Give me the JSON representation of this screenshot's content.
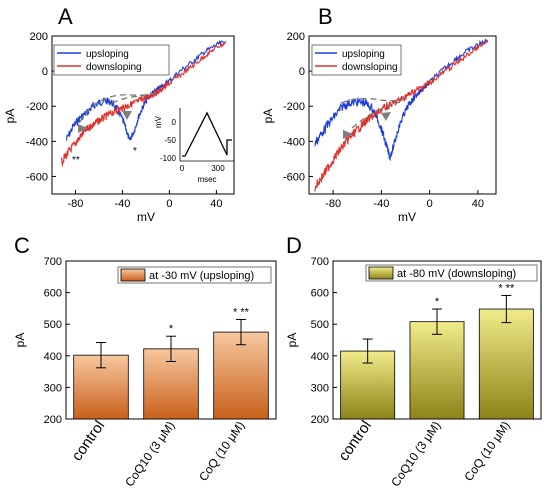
{
  "panels": {
    "A": {
      "letter": "A"
    },
    "B": {
      "letter": "B"
    },
    "C": {
      "letter": "C"
    },
    "D": {
      "letter": "D"
    }
  },
  "colors": {
    "upsloping": "#1f3fd6",
    "downsloping": "#e0302a",
    "bar_c_top": "#f7c8a0",
    "bar_c_bottom": "#c8601a",
    "bar_d_top": "#f1eb8a",
    "bar_d_bottom": "#8c8417",
    "dashed": "#777777",
    "arrow": "#7f7f7f"
  },
  "chart_data": [
    {
      "panel": "A",
      "type": "line",
      "xlabel": "mV",
      "ylabel": "pA",
      "xlim": [
        -100,
        55
      ],
      "ylim": [
        -700,
        200
      ],
      "xticks": [
        -80,
        -40,
        0,
        40
      ],
      "yticks": [
        200,
        0,
        -200,
        -400,
        -600
      ],
      "legend_position": "top-left",
      "series": [
        {
          "name": "upsloping",
          "color": "#1f3fd6",
          "x": [
            -88,
            -82,
            -76,
            -70,
            -65,
            -60,
            -55,
            -50,
            -45,
            -40,
            -37,
            -34,
            -30,
            -26,
            -22,
            -18,
            -14,
            -10,
            -5,
            0,
            10,
            20,
            30,
            40,
            48
          ],
          "y": [
            -395,
            -315,
            -265,
            -235,
            -200,
            -180,
            -170,
            -175,
            -210,
            -275,
            -330,
            -395,
            -340,
            -255,
            -195,
            -150,
            -125,
            -105,
            -80,
            -55,
            5,
            55,
            110,
            150,
            170
          ]
        },
        {
          "name": "downsloping",
          "color": "#e0302a",
          "x": [
            -92,
            -88,
            -84,
            -80,
            -76,
            -72,
            -68,
            -64,
            -60,
            -55,
            -50,
            -45,
            -40,
            -35,
            -30,
            -25,
            -20,
            -15,
            -10,
            -5,
            0,
            10,
            20,
            30,
            40,
            48
          ],
          "y": [
            -520,
            -480,
            -445,
            -410,
            -375,
            -340,
            -320,
            -300,
            -282,
            -262,
            -242,
            -225,
            -210,
            -195,
            -182,
            -165,
            -150,
            -135,
            -120,
            -95,
            -70,
            -20,
            30,
            85,
            135,
            160
          ]
        }
      ],
      "annotations": [
        "**",
        "*"
      ],
      "inset": {
        "xlabel": "msec",
        "ylabel": "mV",
        "xticks": [
          "0",
          "300"
        ],
        "yticks": [
          "0",
          "-50",
          "-100"
        ],
        "protocol_x_ms": [
          0,
          40,
          220,
          400,
          400,
          460
        ],
        "protocol_y_mv": [
          -80,
          -80,
          40,
          -60,
          -50,
          -50
        ]
      }
    },
    {
      "panel": "B",
      "type": "line",
      "xlabel": "mV",
      "ylabel": "pA",
      "xlim": [
        -100,
        55
      ],
      "ylim": [
        -700,
        200
      ],
      "xticks": [
        -80,
        -40,
        0,
        40
      ],
      "yticks": [
        200,
        0,
        -200,
        -400,
        -600
      ],
      "legend_position": "top-left",
      "series": [
        {
          "name": "upsloping",
          "color": "#1f3fd6",
          "x": [
            -95,
            -90,
            -84,
            -78,
            -72,
            -66,
            -60,
            -54,
            -48,
            -44,
            -40,
            -36,
            -33,
            -30,
            -26,
            -22,
            -18,
            -14,
            -10,
            -5,
            0,
            10,
            20,
            30,
            40,
            48
          ],
          "y": [
            -410,
            -360,
            -300,
            -250,
            -200,
            -180,
            -175,
            -180,
            -210,
            -260,
            -330,
            -420,
            -490,
            -430,
            -330,
            -255,
            -200,
            -160,
            -130,
            -95,
            -65,
            0,
            60,
            110,
            150,
            175
          ]
        },
        {
          "name": "downsloping",
          "color": "#e0302a",
          "x": [
            -95,
            -90,
            -85,
            -80,
            -75,
            -70,
            -65,
            -60,
            -55,
            -50,
            -45,
            -40,
            -35,
            -30,
            -25,
            -20,
            -15,
            -10,
            -5,
            0,
            10,
            20,
            30,
            40,
            48
          ],
          "y": [
            -660,
            -610,
            -560,
            -505,
            -455,
            -410,
            -370,
            -335,
            -300,
            -270,
            -245,
            -220,
            -200,
            -185,
            -165,
            -145,
            -125,
            -105,
            -85,
            -65,
            -15,
            35,
            85,
            135,
            165
          ]
        }
      ]
    },
    {
      "panel": "C",
      "type": "bar",
      "ylabel": "pA",
      "ylim": [
        200,
        700
      ],
      "yticks": [
        200,
        300,
        400,
        500,
        600,
        700
      ],
      "legend": "at -30 mV (upsloping)",
      "categories": [
        "control",
        "CoQ10 (3 μM)",
        "CoQ (10 μM)"
      ],
      "values": [
        402,
        422,
        475
      ],
      "errors": [
        40,
        40,
        40
      ],
      "significance": [
        "",
        "*",
        "* **"
      ]
    },
    {
      "panel": "D",
      "type": "bar",
      "ylabel": "pA",
      "ylim": [
        200,
        700
      ],
      "yticks": [
        200,
        300,
        400,
        500,
        600,
        700
      ],
      "legend": "at -80 mV (downsloping)",
      "categories": [
        "control",
        "CoQ10 (3 μM)",
        "CoQ (10 μM)"
      ],
      "values": [
        415,
        508,
        548
      ],
      "errors": [
        38,
        40,
        43
      ],
      "significance": [
        "",
        "*",
        "* **"
      ]
    }
  ]
}
